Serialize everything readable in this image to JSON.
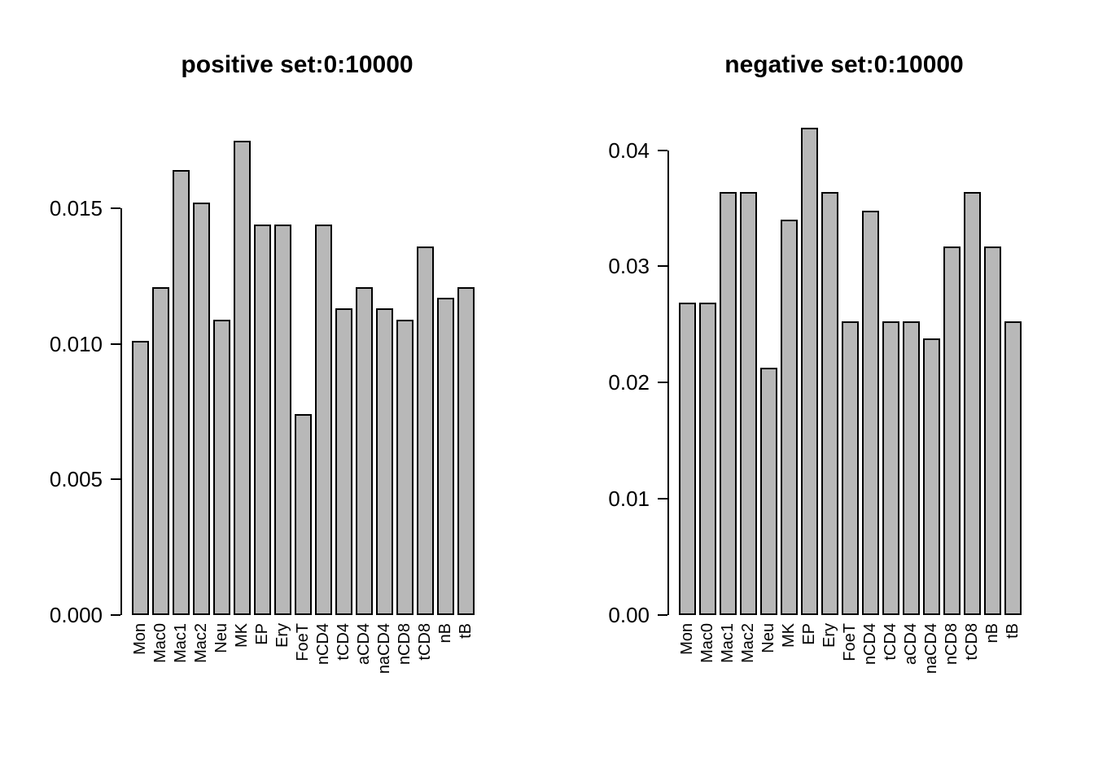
{
  "figure": {
    "background": "#ffffff",
    "text_color": "#000000"
  },
  "chart_data": [
    {
      "type": "bar",
      "title": "positive set:0:10000",
      "categories": [
        "Mon",
        "Mac0",
        "Mac1",
        "Mac2",
        "Neu",
        "MK",
        "EP",
        "Ery",
        "FoeT",
        "nCD4",
        "tCD4",
        "aCD4",
        "naCD4",
        "nCD8",
        "tCD8",
        "nB",
        "tB"
      ],
      "values": [
        0.0101,
        0.0121,
        0.0164,
        0.0152,
        0.0109,
        0.0175,
        0.0144,
        0.0144,
        0.0074,
        0.0144,
        0.0113,
        0.0121,
        0.0113,
        0.0109,
        0.0136,
        0.0117,
        0.0121
      ],
      "xlabel": "",
      "ylabel": "",
      "ylim": [
        0,
        0.018
      ],
      "yticks": [
        {
          "label": "0.000",
          "value": 0
        },
        {
          "label": "0.005",
          "value": 0.005
        },
        {
          "label": "0.010",
          "value": 0.01
        },
        {
          "label": "0.015",
          "value": 0.015
        }
      ],
      "grid": false,
      "legend": "none",
      "bar_fill": "#b8b8b8",
      "bar_border": "#000000"
    },
    {
      "type": "bar",
      "title": "negative set:0:10000",
      "categories": [
        "Mon",
        "Mac0",
        "Mac1",
        "Mac2",
        "Neu",
        "MK",
        "EP",
        "Ery",
        "FoeT",
        "nCD4",
        "tCD4",
        "aCD4",
        "naCD4",
        "nCD8",
        "tCD8",
        "nB",
        "tB"
      ],
      "values": [
        0.0269,
        0.0269,
        0.0364,
        0.0364,
        0.0213,
        0.034,
        0.0419,
        0.0364,
        0.0253,
        0.0348,
        0.0253,
        0.0253,
        0.0238,
        0.0317,
        0.0364,
        0.0317,
        0.0253
      ],
      "xlabel": "",
      "ylabel": "",
      "ylim": [
        0,
        0.042
      ],
      "yticks": [
        {
          "label": "0.00",
          "value": 0
        },
        {
          "label": "0.01",
          "value": 0.01
        },
        {
          "label": "0.02",
          "value": 0.02
        },
        {
          "label": "0.03",
          "value": 0.03
        },
        {
          "label": "0.04",
          "value": 0.04
        }
      ],
      "grid": false,
      "legend": "none",
      "bar_fill": "#b8b8b8",
      "bar_border": "#000000"
    }
  ]
}
